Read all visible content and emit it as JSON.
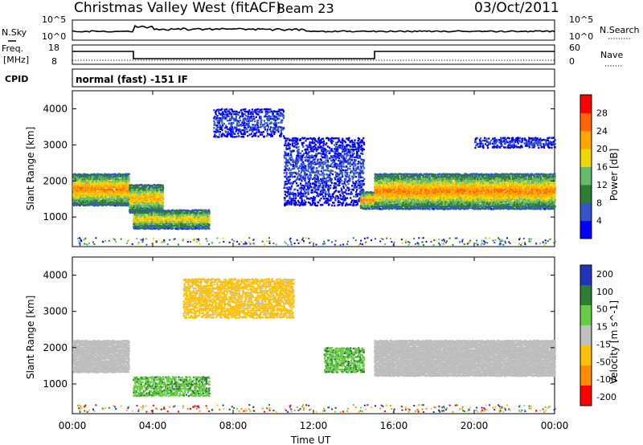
{
  "header": {
    "title": "Christmas Valley West (fitACF)",
    "beam": "Beam 23",
    "date": "03/Oct/2011"
  },
  "nsky_panel": {
    "left_label": "N.Sky",
    "right_label": "N.Search",
    "left_ticks": [
      "10^5",
      "10^0"
    ],
    "right_ticks": [
      "10^5",
      "10^0"
    ]
  },
  "freq_panel": {
    "left_label_line1": "Freq.",
    "left_label_line2": "[MHz]",
    "right_label": "Nave",
    "left_ticks": [
      "18",
      "8"
    ],
    "right_ticks": [
      "60",
      "0"
    ]
  },
  "cpid": {
    "label": "CPID",
    "text": "normal (fast) -151 IF"
  },
  "colors": {
    "power": [
      "#0000ff",
      "#3355cc",
      "#2e7d32",
      "#66bb6a",
      "#f2d600",
      "#ffa500",
      "#ff6600",
      "#ff0000"
    ],
    "velocity": [
      "#2233bb",
      "#2e7d32",
      "#66cc44",
      "#c0c0c0",
      "#ffc107",
      "#ff8c00",
      "#ff0000"
    ],
    "ground_scatter": "#bdbdbd"
  },
  "chart_data": [
    {
      "type": "heatmap",
      "name": "power",
      "xlabel": "Time UT",
      "ylabel": "Slant Range [km]",
      "xlim": [
        0,
        24
      ],
      "ylim": [
        180,
        4500
      ],
      "x_ticks": [
        "00:00",
        "04:00",
        "08:00",
        "12:00",
        "16:00",
        "20:00",
        "00:00"
      ],
      "y_ticks": [
        1000,
        2000,
        3000,
        4000
      ],
      "colorbar": {
        "label": "Power [dB]",
        "range": [
          0,
          32
        ],
        "ticks": [
          "4",
          "8",
          "12",
          "16",
          "20",
          "24",
          "28"
        ]
      },
      "features": [
        {
          "t": [
            0.0,
            2.8
          ],
          "range_km": [
            1300,
            2200
          ],
          "power_db": 25
        },
        {
          "t": [
            2.8,
            4.5
          ],
          "range_km": [
            1100,
            1900
          ],
          "power_db": 22
        },
        {
          "t": [
            3.0,
            6.8
          ],
          "range_km": [
            650,
            1200
          ],
          "power_db": 20
        },
        {
          "t": [
            7.0,
            10.5
          ],
          "range_km": [
            3200,
            4000
          ],
          "power_db": 6
        },
        {
          "t": [
            10.5,
            14.5
          ],
          "range_km": [
            1300,
            3200
          ],
          "power_db": 6
        },
        {
          "t": [
            14.3,
            15.0
          ],
          "range_km": [
            1200,
            1700
          ],
          "power_db": 24
        },
        {
          "t": [
            15.0,
            24.0
          ],
          "range_km": [
            1200,
            2200
          ],
          "power_db": 25
        },
        {
          "t": [
            20.0,
            24.0
          ],
          "range_km": [
            2900,
            3200
          ],
          "power_db": 6
        }
      ]
    },
    {
      "type": "heatmap",
      "name": "velocity",
      "xlabel": "Time UT",
      "ylabel": "Slant Range [km]",
      "xlim": [
        0,
        24
      ],
      "ylim": [
        180,
        4500
      ],
      "x_ticks": [
        "00:00",
        "04:00",
        "08:00",
        "12:00",
        "16:00",
        "20:00",
        "00:00"
      ],
      "y_ticks": [
        1000,
        2000,
        3000,
        4000
      ],
      "colorbar": {
        "label": "Velocity [m s^-1]",
        "ticks": [
          "200",
          "100",
          "50",
          "15",
          "-15",
          "-50",
          "-100",
          "-200"
        ]
      },
      "features": [
        {
          "t": [
            0.0,
            2.8
          ],
          "range_km": [
            1300,
            2200
          ],
          "velocity": 0
        },
        {
          "t": [
            15.0,
            24.0
          ],
          "range_km": [
            1200,
            2200
          ],
          "velocity": 0
        },
        {
          "t": [
            3.0,
            6.8
          ],
          "range_km": [
            650,
            1200
          ],
          "velocity": 40
        },
        {
          "t": [
            5.5,
            11.0
          ],
          "range_km": [
            2800,
            3900
          ],
          "velocity": -30
        },
        {
          "t": [
            12.5,
            14.5
          ],
          "range_km": [
            1300,
            2000
          ],
          "velocity": 40
        }
      ]
    }
  ]
}
